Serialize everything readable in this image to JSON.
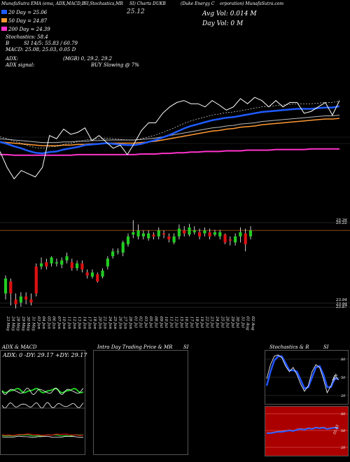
{
  "header": {
    "line1_left": "MunafaSutra EMA (ema, ADX,MACD,B",
    "line1_mid": "SI,Stochastics,MR",
    "line1_ticker": "SI) Charts DUKB",
    "line1_right": "(Duke Energy C",
    "line1_far": "orporation) MunafaSutra.com",
    "price": "25.12",
    "avg_vol": "Avg Vol: 0.014  M",
    "day_vol": "Day Vol: 0   M"
  },
  "stats": {
    "ema20": "20 Day = 25.06",
    "ema50": "50 Day = 24.87",
    "ema200": "200 Day = 24.39",
    "stoch": "Stochastics: 58.4",
    "bsi": "B",
    "rsi": "SI 14/5: 55.83 / 60.79",
    "macd": "MACD: 25.08, 25.03, 0.05 D",
    "adx": "ADX:",
    "adx_mgb": "(MGB) 0, 29.2, 29.2",
    "adx_signal": "ADX signal:",
    "buy": "BUY Slowing @ 7%"
  },
  "colors": {
    "ema20": "#1f5bff",
    "ema50": "#ff9933",
    "ema200": "#ff33cc",
    "price_line": "#ffffff",
    "candle_up": "#22cc22",
    "candle_down": "#dd1111",
    "hline": "#c06020",
    "stoch_line": "#2255ff",
    "rsi_bg": "#aa0000"
  },
  "chart_data": {
    "type": "candlestick",
    "ylim": [
      23.8,
      25.35
    ],
    "y_labels": [
      "25.26",
      "25.22",
      "23.94",
      "23.94",
      "23.87"
    ],
    "hline_levels": [
      25.28,
      25.15,
      23.94,
      23.87
    ],
    "x": [
      "23 May",
      "24 May",
      "28 May",
      "29 May",
      "30 May",
      "31 May",
      "03 Jun",
      "04 Jun",
      "05 Jun",
      "06 Jun",
      "07 Jun",
      "10 Jun",
      "11 Jun",
      "12 Jun",
      "13 Jun",
      "14 Jun",
      "17 Jun",
      "18 Jun",
      "20 Jun",
      "21 Jun",
      "24 Jun",
      "25 Jun",
      "26 Jun",
      "27 Jun",
      "28 Jun",
      "01 Jul",
      "02 Jul",
      "03 Jul",
      "05 Jul",
      "08 Jul",
      "09 Jul",
      "10 Jul",
      "11 Jul",
      "12 Jul",
      "15 Jul",
      "16 Jul",
      "17 Jul",
      "18 Jul",
      "19 Jul",
      "22 Jul",
      "23 Jul",
      "24 Jul",
      "25 Jul",
      "26 Jul",
      "29 Jul",
      "30 Jul",
      "31 Jul",
      "01 Aug",
      "02 Aug"
    ],
    "open": [
      24.1,
      24.3,
      24.0,
      23.95,
      24.05,
      24.0,
      24.55,
      24.55,
      24.62,
      24.6,
      24.6,
      24.58,
      24.65,
      24.62,
      24.52,
      24.6,
      24.45,
      24.38,
      24.42,
      24.38,
      24.55,
      24.72,
      24.8,
      24.78,
      24.92,
      25.08,
      25.05,
      25.05,
      25.02,
      25.08,
      25.05,
      25.1,
      25.05,
      24.95,
      25.05,
      25.15,
      25.08,
      25.12,
      25.12,
      25.1,
      25.12,
      25.08,
      25.05,
      25.08,
      25.0,
      24.95,
      25.05,
      25.1,
      25.05
    ],
    "close": [
      24.35,
      24.1,
      23.92,
      24.05,
      24.0,
      23.95,
      24.1,
      24.6,
      24.55,
      24.7,
      24.62,
      24.65,
      24.72,
      24.52,
      24.6,
      24.5,
      24.4,
      24.45,
      24.3,
      24.48,
      24.68,
      24.8,
      24.8,
      24.95,
      25.05,
      25.12,
      25.15,
      25.1,
      25.1,
      25.05,
      25.15,
      25.08,
      25.0,
      25.05,
      25.18,
      25.1,
      25.2,
      25.15,
      25.05,
      25.15,
      25.05,
      25.12,
      25.12,
      24.95,
      24.98,
      25.05,
      25.12,
      24.92,
      25.15
    ],
    "high": [
      24.4,
      24.35,
      24.1,
      24.12,
      24.12,
      24.1,
      24.6,
      24.7,
      24.68,
      24.72,
      24.68,
      24.7,
      24.78,
      24.68,
      24.65,
      24.65,
      24.5,
      24.5,
      24.45,
      24.52,
      24.72,
      24.85,
      24.85,
      24.98,
      25.1,
      25.32,
      25.25,
      25.15,
      25.15,
      25.12,
      25.2,
      25.15,
      25.1,
      25.1,
      25.25,
      25.22,
      25.26,
      25.22,
      25.18,
      25.2,
      25.18,
      25.16,
      25.16,
      25.1,
      25.05,
      25.1,
      25.2,
      25.18,
      25.22
    ],
    "low": [
      24.0,
      23.9,
      23.85,
      23.88,
      23.92,
      23.9,
      24.05,
      24.5,
      24.5,
      24.55,
      24.55,
      24.52,
      24.6,
      24.48,
      24.48,
      24.45,
      24.35,
      24.35,
      24.28,
      24.35,
      24.5,
      24.68,
      24.75,
      24.72,
      24.88,
      25.02,
      25.0,
      25.0,
      24.98,
      25.0,
      25.0,
      25.02,
      24.95,
      24.92,
      25.0,
      25.05,
      25.05,
      25.08,
      25.0,
      25.05,
      25.0,
      25.05,
      25.0,
      24.92,
      24.9,
      24.9,
      24.95,
      24.8,
      25.0
    ],
    "ema20": [
      24.5,
      24.47,
      24.43,
      24.4,
      24.36,
      24.33,
      24.32,
      24.34,
      24.35,
      24.38,
      24.4,
      24.42,
      24.45,
      24.46,
      24.47,
      24.48,
      24.47,
      24.46,
      24.45,
      24.45,
      24.47,
      24.5,
      24.53,
      24.57,
      24.61,
      24.66,
      24.71,
      24.75,
      24.78,
      24.81,
      24.84,
      24.86,
      24.88,
      24.89,
      24.91,
      24.93,
      24.95,
      24.97,
      24.98,
      24.99,
      25.0,
      25.01,
      25.02,
      25.02,
      25.02,
      25.03,
      25.04,
      25.04,
      25.06
    ],
    "ema50": [
      24.5,
      24.49,
      24.48,
      24.47,
      24.46,
      24.45,
      24.44,
      24.44,
      24.44,
      24.45,
      24.45,
      24.46,
      24.46,
      24.47,
      24.47,
      24.48,
      24.48,
      24.48,
      24.48,
      24.48,
      24.49,
      24.5,
      24.51,
      24.53,
      24.55,
      24.57,
      24.59,
      24.61,
      24.63,
      24.65,
      24.67,
      24.68,
      24.7,
      24.71,
      24.73,
      24.74,
      24.75,
      24.77,
      24.78,
      24.79,
      24.8,
      24.81,
      24.82,
      24.83,
      24.84,
      24.85,
      24.86,
      24.86,
      24.87
    ],
    "ema200": [
      24.3,
      24.3,
      24.29,
      24.29,
      24.29,
      24.29,
      24.29,
      24.29,
      24.29,
      24.29,
      24.29,
      24.3,
      24.3,
      24.3,
      24.3,
      24.3,
      24.3,
      24.3,
      24.3,
      24.3,
      24.31,
      24.31,
      24.31,
      24.32,
      24.32,
      24.33,
      24.33,
      24.34,
      24.34,
      24.35,
      24.35,
      24.35,
      24.36,
      24.36,
      24.36,
      24.37,
      24.37,
      24.37,
      24.37,
      24.38,
      24.38,
      24.38,
      24.38,
      24.38,
      24.39,
      24.39,
      24.39,
      24.39,
      24.39
    ]
  },
  "panels": {
    "adx_title": "ADX & MACD",
    "adx_label": "ADX: 0  -DY: 29.17  +DY: 29.17",
    "intraday_title": "Intra Day Trading Price & MR",
    "intraday_si": "SI",
    "stoch_title": "Stochastics & R",
    "stoch_si": "SI",
    "stoch_ticks": [
      "80",
      "50",
      "20"
    ],
    "rsi_ticks": [
      "80",
      "50",
      "20"
    ],
    "stoch_value": "58.4",
    "rsi_value": "55.83"
  }
}
